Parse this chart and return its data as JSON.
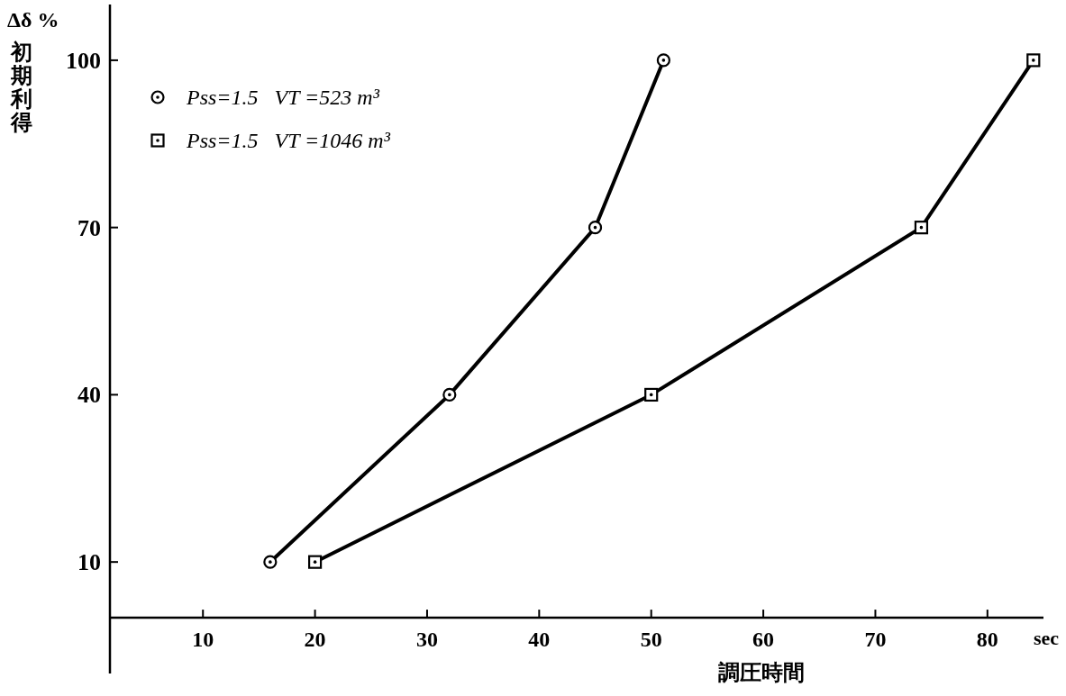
{
  "chart_data": {
    "type": "line",
    "title": "Δδ %",
    "ylabel": "初期利得",
    "xlabel": "調圧時間",
    "annotations": [
      "sec"
    ],
    "xlim": [
      1.7,
      85
    ],
    "ylim": [
      -10,
      110
    ],
    "xticks": [
      10,
      20,
      30,
      40,
      50,
      60,
      70,
      80
    ],
    "yticks": [
      10,
      40,
      70,
      100
    ],
    "legend": "top left",
    "grid": false,
    "line_style": "solid",
    "series": [
      {
        "name": "Pss=1.5   VT =523 m³",
        "color": "#000000",
        "marker": "circle",
        "x": [
          16,
          32,
          45,
          51.1
        ],
        "values": [
          10,
          40,
          70,
          100
        ]
      },
      {
        "name": "Pss=1.5   VT =1046 m³",
        "color": "#000000",
        "marker": "square",
        "x": [
          20,
          50,
          74.1,
          84.1
        ],
        "values": [
          10,
          40,
          70,
          100
        ]
      }
    ]
  }
}
